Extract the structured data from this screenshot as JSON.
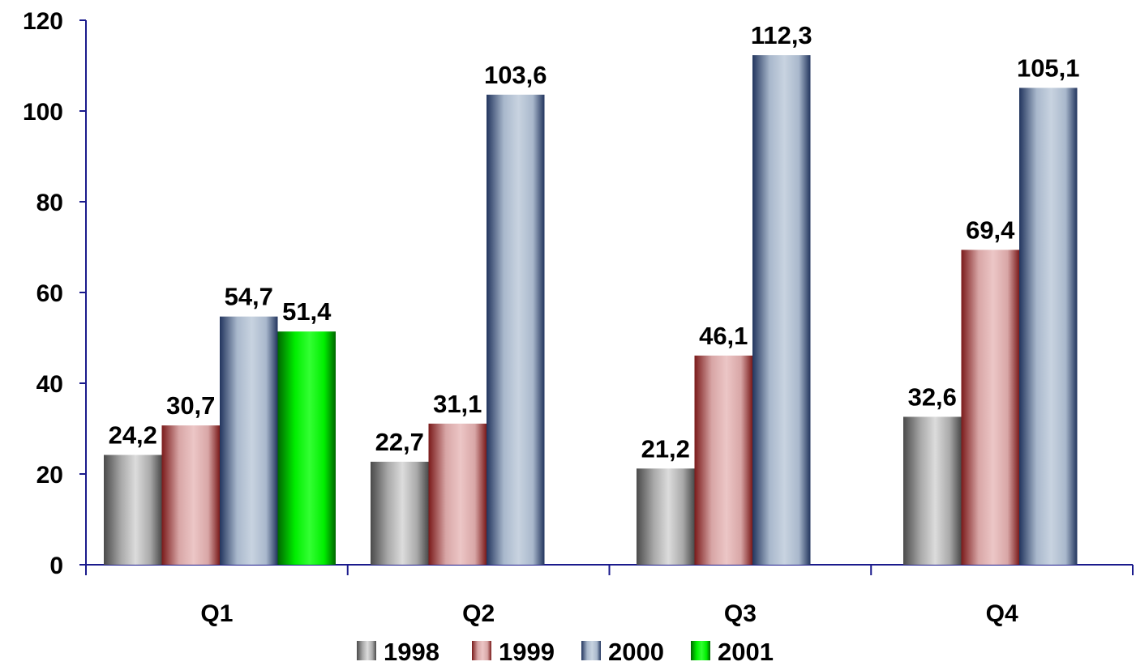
{
  "chart_data": {
    "type": "bar",
    "categories": [
      "Q1",
      "Q2",
      "Q3",
      "Q4"
    ],
    "y_ticks": [
      "0",
      "20",
      "40",
      "60",
      "80",
      "100",
      "120"
    ],
    "ylim": [
      0,
      120
    ],
    "grid": false,
    "legend_position": "bottom",
    "series": [
      {
        "name": "1998",
        "values": [
          24.2,
          22.7,
          21.2,
          32.6
        ],
        "labels": [
          "24,2",
          "22,7",
          "21,2",
          "32,6"
        ],
        "color": "#a9a9a9",
        "dark": "#4a4a4a",
        "light": "#dcdcdc"
      },
      {
        "name": "1999",
        "values": [
          30.7,
          31.1,
          46.1,
          69.4
        ],
        "labels": [
          "30,7",
          "31,1",
          "46,1",
          "69,4"
        ],
        "color": "#d8a6a6",
        "dark": "#7a1a1a",
        "light": "#ecc6c6"
      },
      {
        "name": "2000",
        "values": [
          54.7,
          103.6,
          112.3,
          105.1
        ],
        "labels": [
          "54,7",
          "103,6",
          "112,3",
          "105,1"
        ],
        "color": "#a9b8cc",
        "dark": "#22355e",
        "light": "#c8d3e0"
      },
      {
        "name": "2001",
        "values": [
          51.4,
          null,
          null,
          null
        ],
        "labels": [
          "51,4",
          "",
          "",
          ""
        ],
        "color": "#00ee00",
        "dark": "#006600",
        "light": "#33ff33"
      }
    ]
  }
}
